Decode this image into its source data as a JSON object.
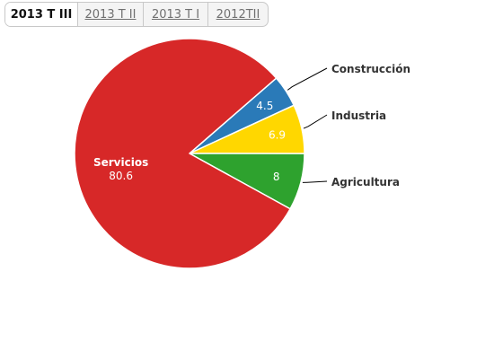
{
  "tabs": [
    {
      "label": "2013 T III",
      "active": true
    },
    {
      "label": "2013 T II",
      "active": false
    },
    {
      "label": "2013 T I",
      "active": false
    },
    {
      "label": "2012TII",
      "active": false
    }
  ],
  "chart_data": {
    "type": "pie",
    "title": "",
    "slices": [
      {
        "name": "Construcción",
        "value": 4.5,
        "color": "#2a7ab8"
      },
      {
        "name": "Industria",
        "value": 6.9,
        "color": "#ffd700"
      },
      {
        "name": "Agricultura",
        "value": 8,
        "color": "#2ea22e"
      },
      {
        "name": "Servicios",
        "value": 80.6,
        "color": "#d72828"
      }
    ],
    "data_labels": true,
    "start_angle_deg": -41,
    "label_color": "#ffffff",
    "connector_color": "#000000"
  }
}
